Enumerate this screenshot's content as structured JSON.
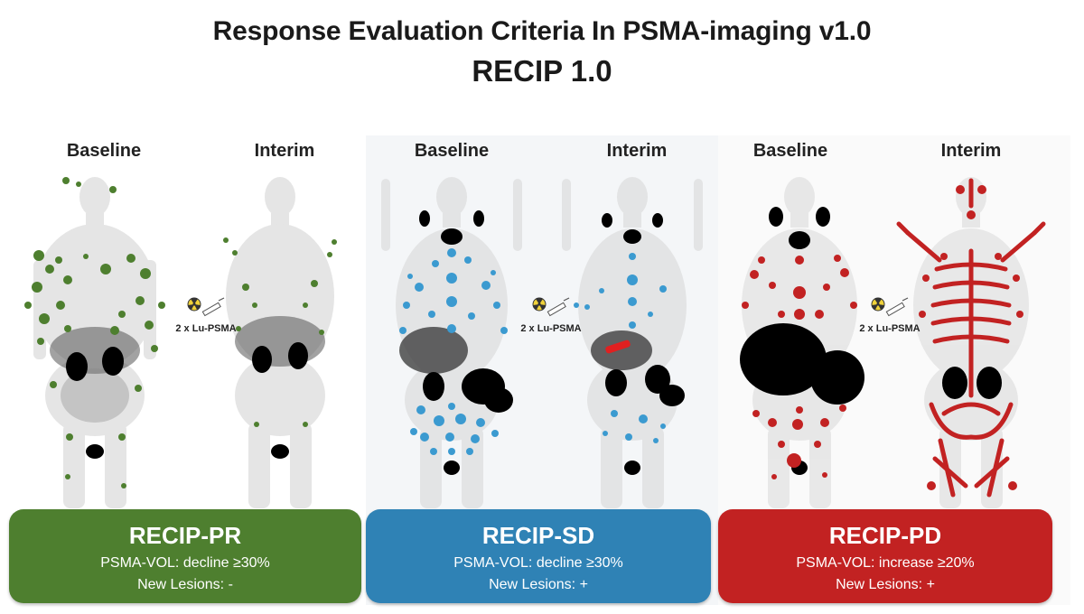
{
  "title": "Response Evaluation Criteria In PSMA-imaging v1.0",
  "subtitle": "RECIP 1.0",
  "panels": [
    {
      "baseline": "Baseline",
      "interim": "Interim",
      "treatment": "2 x Lu-PSMA",
      "category": "RECIP-PR",
      "vol": "PSMA-VOL: decline ≥30%",
      "lesions": "New Lesions: -",
      "color": "#4e7f2f"
    },
    {
      "baseline": "Baseline",
      "interim": "Interim",
      "treatment": "2 x Lu-PSMA",
      "category": "RECIP-SD",
      "vol": "PSMA-VOL: decline ≥30%",
      "lesions": "New Lesions: +",
      "color": "#2f82b5"
    },
    {
      "baseline": "Baseline",
      "interim": "Interim",
      "treatment": "2 x Lu-PSMA",
      "category": "RECIP-PD",
      "vol": "PSMA-VOL: increase ≥20%",
      "lesions": "New Lesions: +",
      "color": "#c22222"
    }
  ],
  "icons": {
    "treatment": "radioactive-syringe-icon"
  }
}
